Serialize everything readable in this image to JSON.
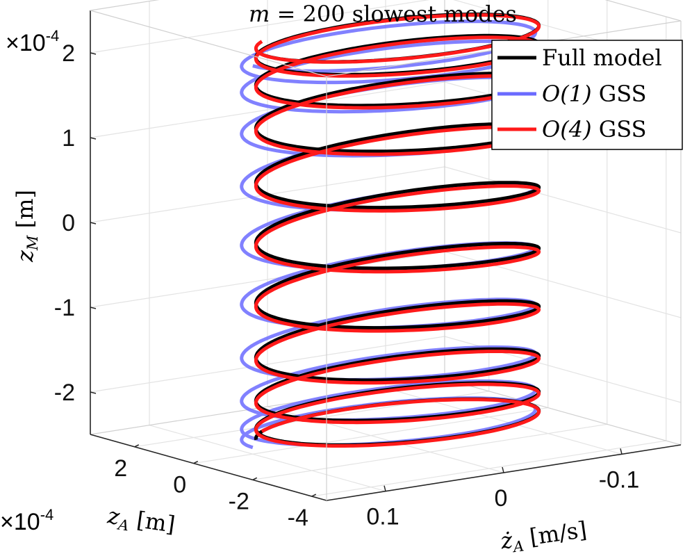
{
  "chart_data": {
    "type": "line",
    "projection": "3d",
    "title": "m = 200 slowest modes",
    "title_parts": {
      "var": "m",
      "rest": " = 200 slowest modes"
    },
    "axes": {
      "x": {
        "label": "ż_A [m/s]",
        "label_parts": {
          "var": "ż",
          "sub": "A",
          "unit": " [m/s]"
        },
        "ticks": [
          0.1,
          0,
          -0.1
        ],
        "tick_labels": [
          "0.1",
          "0",
          "-0.1"
        ],
        "range": [
          0.15,
          -0.15
        ]
      },
      "y": {
        "label": "z_A [m]",
        "label_parts": {
          "var": "z",
          "sub": "A",
          "unit": " [m]"
        },
        "ticks": [
          2,
          0,
          -2,
          -4
        ],
        "tick_labels": [
          "2",
          "0",
          "-2",
          "-4"
        ],
        "multiplier": "×10^-4",
        "multiplier_parts": {
          "base": "×10",
          "exp": "-4"
        },
        "range": [
          3.5,
          -4.5
        ]
      },
      "z": {
        "label": "z_M [m]",
        "label_parts": {
          "var": "z",
          "sub": "M",
          "unit": " [m]"
        },
        "ticks": [
          2,
          1,
          0,
          -1,
          -2
        ],
        "tick_labels": [
          "2",
          "1",
          "0",
          "-1",
          "-2"
        ],
        "multiplier": "×10^-4",
        "multiplier_parts": {
          "base": "×10",
          "exp": "-4"
        },
        "range": [
          -2.5,
          2.5
        ]
      }
    },
    "grid": true,
    "box": true,
    "legend": {
      "placement": "top-right",
      "entries": [
        {
          "label": "Full model",
          "label_text": "Full model",
          "color": "#000000"
        },
        {
          "label": "O(1) GSS",
          "label_var": "O(1)",
          "label_text": " GSS",
          "color": "#6b6bff"
        },
        {
          "label": "O(4) GSS",
          "label_var": "O(4)",
          "label_text": " GSS",
          "color": "#ff1a1a"
        }
      ]
    },
    "series": [
      {
        "name": "O(1) GSS",
        "color": "#6b6bff",
        "trajectory": {
          "z_range": [
            -2.3,
            2.2
          ],
          "zdot_amplitude": 0.115,
          "zA_amplitude": 1.9,
          "zdot_center": 0.005,
          "zA_center": -0.8,
          "turns": 10
        }
      },
      {
        "name": "Full model",
        "color": "#000000",
        "trajectory": {
          "z_range": [
            -2.3,
            2.3
          ],
          "zdot_amplitude": 0.11,
          "zA_amplitude": 1.9,
          "zdot_center": 0.0,
          "zA_center": -0.9,
          "turns": 10
        }
      },
      {
        "name": "O(4) GSS",
        "color": "#ff1a1a",
        "trajectory": {
          "z_range": [
            -2.3,
            2.3
          ],
          "zdot_amplitude": 0.11,
          "zA_amplitude": 1.9,
          "zdot_center": 0.0,
          "zA_center": -0.9,
          "turns": 10
        }
      }
    ]
  }
}
